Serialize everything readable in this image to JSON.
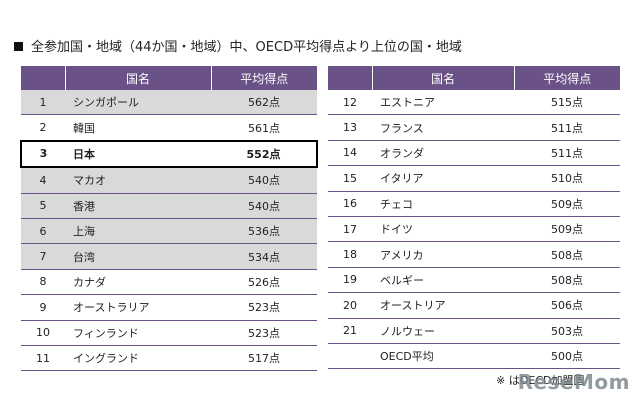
{
  "title": "全参加国・地域（44か国・地域）中、OECD平均得点より上位の国・地域",
  "left_table": {
    "headers": [
      "",
      "国名",
      "平均得点"
    ],
    "rows": [
      {
        "num": "1",
        "name": "シンガポール",
        "score": "562点"
      },
      {
        "num": "2",
        "name": "韓国",
        "score": "561点"
      },
      {
        "num": "3",
        "name": "日本",
        "score": "552点"
      },
      {
        "num": "4",
        "name": "マカオ",
        "score": "540点"
      },
      {
        "num": "5",
        "name": "香港",
        "score": "540点"
      },
      {
        "num": "6",
        "name": "上海",
        "score": "536点"
      },
      {
        "num": "7",
        "name": "台湾",
        "score": "534点"
      },
      {
        "num": "8",
        "name": "カナダ",
        "score": "526点"
      },
      {
        "num": "9",
        "name": "オーストラリア",
        "score": "523点"
      },
      {
        "num": "10",
        "name": "フィンランド",
        "score": "523点"
      },
      {
        "num": "11",
        "name": "イングランド",
        "score": "517点"
      }
    ]
  },
  "right_table": {
    "headers": [
      "",
      "国名",
      "平均得点"
    ],
    "rows": [
      {
        "num": "12",
        "name": "エストニア",
        "score": "515点"
      },
      {
        "num": "13",
        "name": "フランス",
        "score": "511点"
      },
      {
        "num": "14",
        "name": "オランダ",
        "score": "511点"
      },
      {
        "num": "15",
        "name": "イタリア",
        "score": "510点"
      },
      {
        "num": "16",
        "name": "チェコ",
        "score": "509点"
      },
      {
        "num": "17",
        "name": "ドイツ",
        "score": "509点"
      },
      {
        "num": "18",
        "name": "アメリカ",
        "score": "508点"
      },
      {
        "num": "19",
        "name": "ベルギー",
        "score": "508点"
      },
      {
        "num": "20",
        "name": "オーストリア",
        "score": "506点"
      },
      {
        "num": "21",
        "name": "ノルウェー",
        "score": "503点"
      },
      {
        "num": "",
        "name": "OECD平均",
        "score": "500点"
      }
    ]
  },
  "note": "※ はOECD加盟国",
  "logo": "ReseMom",
  "colors": {
    "header": "#6a5187",
    "shade": "#d9d9d9",
    "highlight_border": "#000000"
  }
}
